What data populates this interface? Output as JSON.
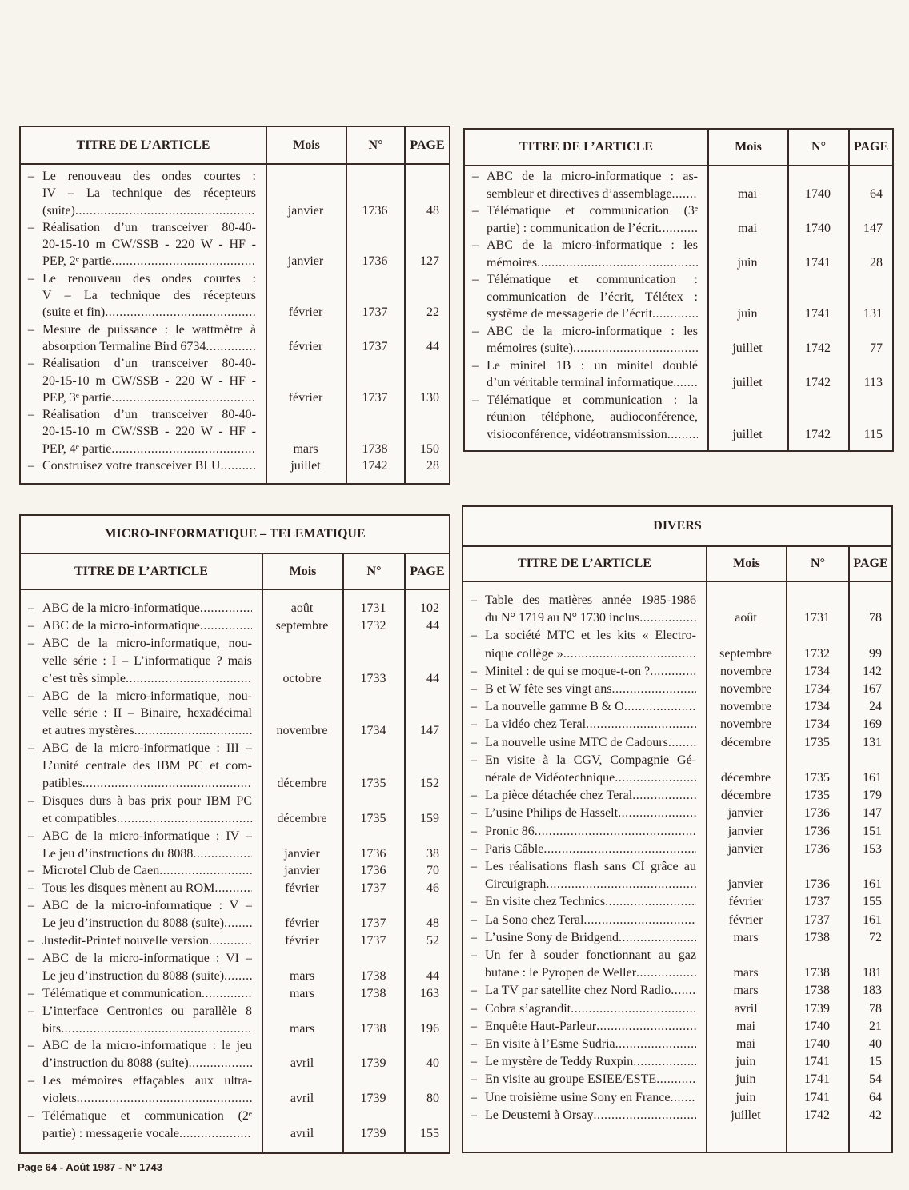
{
  "headers": {
    "title": "TITRE DE L’ARTICLE",
    "month": "Mois",
    "number": "N°",
    "page": "PAGE"
  },
  "tables": [
    {
      "section": "",
      "rows": [
        {
          "title_lines": [
            "Le renouveau des ondes courtes :",
            "IV – La technique des récepteurs",
            "(suite)"
          ],
          "month": "janvier",
          "number": "1736",
          "page": "48"
        },
        {
          "title_lines": [
            "Réalisation d’un transceiver 80-40-",
            "20-15-10 m CW/SSB - 220 W - HF -",
            "PEP, 2ᵉ partie"
          ],
          "month": "janvier",
          "number": "1736",
          "page": "127"
        },
        {
          "title_lines": [
            "Le renouveau des ondes courtes :",
            "V – La technique des récepteurs",
            "(suite et fin)"
          ],
          "month": "février",
          "number": "1737",
          "page": "22"
        },
        {
          "title_lines": [
            "Mesure de puissance : le wattmètre à",
            "absorption Termaline Bird 6734"
          ],
          "month": "février",
          "number": "1737",
          "page": "44"
        },
        {
          "title_lines": [
            "Réalisation d’un transceiver 80-40-",
            "20-15-10 m CW/SSB - 220 W - HF -",
            "PEP, 3ᵉ partie"
          ],
          "month": "février",
          "number": "1737",
          "page": "130"
        },
        {
          "title_lines": [
            "Réalisation d’un transceiver 80-40-",
            "20-15-10 m CW/SSB - 220 W - HF -",
            "PEP, 4ᵉ partie"
          ],
          "month": "mars",
          "number": "1738",
          "page": "150"
        },
        {
          "title_lines": [
            "Construisez votre transceiver BLU"
          ],
          "month": "juillet",
          "number": "1742",
          "page": "28"
        }
      ]
    },
    {
      "section": "",
      "rows": [
        {
          "title_lines": [
            "ABC de la micro-informatique : as-",
            "sembleur et directives d’assemblage"
          ],
          "month": "mai",
          "number": "1740",
          "page": "64"
        },
        {
          "title_lines": [
            "Télématique et communication (3ᵉ",
            "partie) : communication de l’écrit"
          ],
          "month": "mai",
          "number": "1740",
          "page": "147"
        },
        {
          "title_lines": [
            "ABC de la micro-informatique : les",
            "mémoires"
          ],
          "month": "juin",
          "number": "1741",
          "page": "28"
        },
        {
          "title_lines": [
            "Télématique et communication :",
            "communication de l’écrit, Télétex :",
            "système de messagerie de l’écrit"
          ],
          "month": "juin",
          "number": "1741",
          "page": "131"
        },
        {
          "title_lines": [
            "ABC de la micro-informatique : les",
            "mémoires (suite)"
          ],
          "month": "juillet",
          "number": "1742",
          "page": "77"
        },
        {
          "title_lines": [
            "Le minitel 1B : un minitel doublé",
            "d’un véritable terminal informatique."
          ],
          "month": "juillet",
          "number": "1742",
          "page": "113"
        },
        {
          "title_lines": [
            "Télématique et communication : la",
            "réunion téléphone, audioconférence,",
            "visioconférence, vidéotransmission"
          ],
          "month": "juillet",
          "number": "1742",
          "page": "115"
        }
      ]
    },
    {
      "section": "MICRO-INFORMATIQUE – TELEMATIQUE",
      "rows": [
        {
          "title_lines": [
            "ABC de la micro-informatique"
          ],
          "month": "août",
          "number": "1731",
          "page": "102"
        },
        {
          "title_lines": [
            "ABC de la micro-informatique"
          ],
          "month": "septembre",
          "number": "1732",
          "page": "44"
        },
        {
          "title_lines": [
            "ABC de la micro-informatique, nou-",
            "velle série : I – L’informatique ? mais",
            "c’est très simple"
          ],
          "month": "octobre",
          "number": "1733",
          "page": "44"
        },
        {
          "title_lines": [
            "ABC de la micro-informatique, nou-",
            "velle série : II – Binaire, hexadécimal",
            "et autres mystères"
          ],
          "month": "novembre",
          "number": "1734",
          "page": "147"
        },
        {
          "title_lines": [
            "ABC de la micro-informatique : III –",
            "L’unité centrale des IBM PC et com-",
            "patibles"
          ],
          "month": "décembre",
          "number": "1735",
          "page": "152"
        },
        {
          "title_lines": [
            "Disques durs à bas prix pour IBM PC",
            "et compatibles"
          ],
          "month": "décembre",
          "number": "1735",
          "page": "159"
        },
        {
          "title_lines": [
            "ABC de la micro-informatique : IV –",
            "Le jeu d’instructions du 8088"
          ],
          "month": "janvier",
          "number": "1736",
          "page": "38"
        },
        {
          "title_lines": [
            "Microtel Club de Caen"
          ],
          "month": "janvier",
          "number": "1736",
          "page": "70"
        },
        {
          "title_lines": [
            "Tous les disques mènent au ROM"
          ],
          "month": "février",
          "number": "1737",
          "page": "46"
        },
        {
          "title_lines": [
            "ABC de la micro-informatique : V –",
            "Le jeu d’instruction du 8088 (suite)"
          ],
          "month": "février",
          "number": "1737",
          "page": "48"
        },
        {
          "title_lines": [
            "Justedit-Printef nouvelle version"
          ],
          "month": "février",
          "number": "1737",
          "page": "52"
        },
        {
          "title_lines": [
            "ABC de la micro-informatique : VI –",
            "Le jeu d’instruction du 8088 (suite)"
          ],
          "month": "mars",
          "number": "1738",
          "page": "44"
        },
        {
          "title_lines": [
            "Télématique et communication"
          ],
          "month": "mars",
          "number": "1738",
          "page": "163"
        },
        {
          "title_lines": [
            "L’interface Centronics ou parallèle 8",
            "bits"
          ],
          "month": "mars",
          "number": "1738",
          "page": "196"
        },
        {
          "title_lines": [
            "ABC de la micro-informatique : le jeu",
            "d’instruction du 8088 (suite)"
          ],
          "month": "avril",
          "number": "1739",
          "page": "40"
        },
        {
          "title_lines": [
            "Les mémoires effaçables aux ultra-",
            "violets"
          ],
          "month": "avril",
          "number": "1739",
          "page": "80"
        },
        {
          "title_lines": [
            "Télématique et communication (2ᵉ",
            "partie) : messagerie vocale"
          ],
          "month": "avril",
          "number": "1739",
          "page": "155"
        }
      ]
    },
    {
      "section": "DIVERS",
      "rows": [
        {
          "title_lines": [
            "Table des matières année 1985-1986",
            "du N° 1719 au N° 1730 inclus"
          ],
          "month": "août",
          "number": "1731",
          "page": "78"
        },
        {
          "title_lines": [
            "La société MTC et les kits « Electro-",
            "nique collège »"
          ],
          "month": "septembre",
          "number": "1732",
          "page": "99"
        },
        {
          "title_lines": [
            "Minitel : de qui se moque-t-on ?"
          ],
          "month": "novembre",
          "number": "1734",
          "page": "142"
        },
        {
          "title_lines": [
            "B et W fête ses vingt ans"
          ],
          "month": "novembre",
          "number": "1734",
          "page": "167"
        },
        {
          "title_lines": [
            "La nouvelle gamme B & O"
          ],
          "month": "novembre",
          "number": "1734",
          "page": "24"
        },
        {
          "title_lines": [
            "La vidéo chez Teral"
          ],
          "month": "novembre",
          "number": "1734",
          "page": "169"
        },
        {
          "title_lines": [
            "La nouvelle usine MTC de Cadours"
          ],
          "month": "décembre",
          "number": "1735",
          "page": "131"
        },
        {
          "title_lines": [
            "En visite à la CGV, Compagnie Gé-",
            "nérale de Vidéotechnique"
          ],
          "month": "décembre",
          "number": "1735",
          "page": "161"
        },
        {
          "title_lines": [
            "La pièce détachée chez Teral"
          ],
          "month": "décembre",
          "number": "1735",
          "page": "179"
        },
        {
          "title_lines": [
            "L’usine Philips de Hasselt"
          ],
          "month": "janvier",
          "number": "1736",
          "page": "147"
        },
        {
          "title_lines": [
            "Pronic 86"
          ],
          "month": "janvier",
          "number": "1736",
          "page": "151"
        },
        {
          "title_lines": [
            "Paris Câble"
          ],
          "month": "janvier",
          "number": "1736",
          "page": "153"
        },
        {
          "title_lines": [
            "Les réalisations flash sans CI grâce au",
            "Circuigraph"
          ],
          "month": "janvier",
          "number": "1736",
          "page": "161"
        },
        {
          "title_lines": [
            "En visite chez Technics"
          ],
          "month": "février",
          "number": "1737",
          "page": "155"
        },
        {
          "title_lines": [
            "La Sono chez Teral"
          ],
          "month": "février",
          "number": "1737",
          "page": "161"
        },
        {
          "title_lines": [
            "L’usine Sony de Bridgend"
          ],
          "month": "mars",
          "number": "1738",
          "page": "72"
        },
        {
          "title_lines": [
            "Un fer à souder fonctionnant au gaz",
            "butane : le Pyropen de Weller"
          ],
          "month": "mars",
          "number": "1738",
          "page": "181"
        },
        {
          "title_lines": [
            "La TV par satellite chez Nord Radio"
          ],
          "month": "mars",
          "number": "1738",
          "page": "183"
        },
        {
          "title_lines": [
            "Cobra s’agrandit"
          ],
          "month": "avril",
          "number": "1739",
          "page": "78"
        },
        {
          "title_lines": [
            "Enquête Haut-Parleur"
          ],
          "month": "mai",
          "number": "1740",
          "page": "21"
        },
        {
          "title_lines": [
            "En visite à l’Esme Sudria"
          ],
          "month": "mai",
          "number": "1740",
          "page": "40"
        },
        {
          "title_lines": [
            "Le mystère de Teddy Ruxpin"
          ],
          "month": "juin",
          "number": "1741",
          "page": "15"
        },
        {
          "title_lines": [
            "En visite au groupe ESIEE/ESTE"
          ],
          "month": "juin",
          "number": "1741",
          "page": "54"
        },
        {
          "title_lines": [
            "Une troisième usine Sony en France"
          ],
          "month": "juin",
          "number": "1741",
          "page": "64"
        },
        {
          "title_lines": [
            "Le Deustemi à Orsay"
          ],
          "month": "juillet",
          "number": "1742",
          "page": "42"
        }
      ]
    }
  ],
  "footer": "Page 64 - Août 1987 - N° 1743"
}
